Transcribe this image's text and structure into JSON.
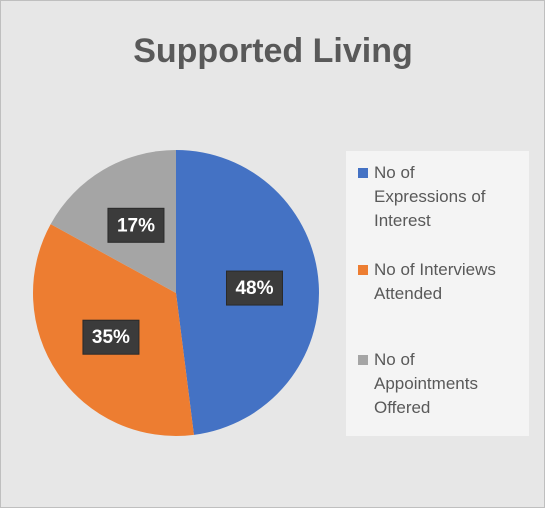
{
  "chart_data": {
    "type": "pie",
    "title": "Supported Living",
    "categories": [
      "No of Expressions of Interest",
      "No of Interviews Attended",
      "No of Appointments Offered"
    ],
    "values": [
      48,
      35,
      17
    ],
    "value_labels": [
      "48%",
      "35%",
      "17%"
    ],
    "colors": [
      "#4472c4",
      "#ed7d31",
      "#a5a5a5"
    ],
    "legend": "right"
  }
}
